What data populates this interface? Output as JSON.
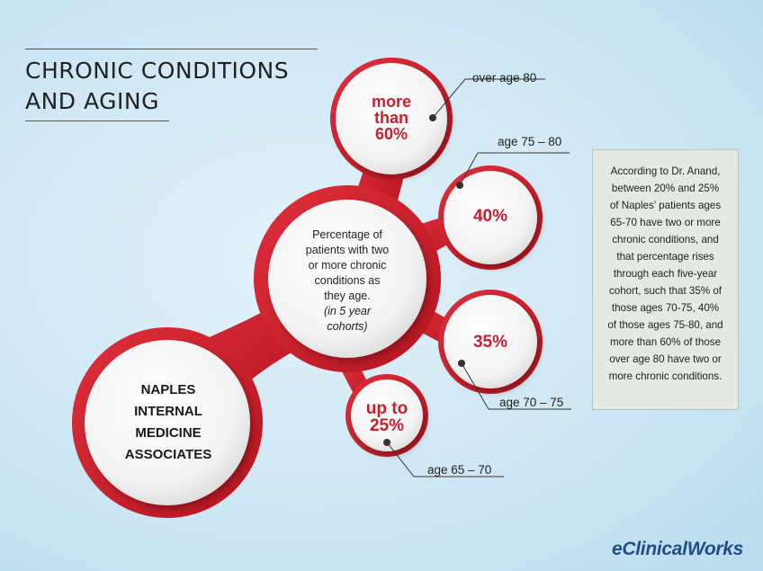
{
  "title": {
    "line1": "CHRONIC CONDITIONS",
    "line2": "AND AGING"
  },
  "hub": {
    "line1": "Percentage of",
    "line2": "patients with two",
    "line3": "or more chronic",
    "line4": "conditions as",
    "line5": "they age.",
    "note_line1": "(in 5 year",
    "note_line2": "cohorts)"
  },
  "organization": {
    "line1": "NAPLES",
    "line2": "INTERNAL",
    "line3": "MEDICINE",
    "line4": "ASSOCIATES"
  },
  "cohorts": [
    {
      "age": "over age 80",
      "value_line1": "more",
      "value_line2": "than",
      "value_line3": "60%"
    },
    {
      "age": "age 75 – 80",
      "value": "40%"
    },
    {
      "age": "age 70 – 75",
      "value": "35%"
    },
    {
      "age": "age 65 – 70",
      "value_line1": "up to",
      "value_line2": "25%"
    }
  ],
  "sidebar_note": {
    "l1": "According to Dr. Anand,",
    "l2": "between 20% and 25%",
    "l3": "of Naples’ patients ages",
    "l4": "65-70 have two or more",
    "l5": "chronic conditions, and",
    "l6": "that percentage rises",
    "l7": "through each five-year",
    "l8": "cohort, such that 35% of",
    "l9": "those ages 70-75, 40%",
    "l10": "of those ages 75-80, and",
    "l11": "more than 60% of those",
    "l12": "over age 80 have two or",
    "l13": "more chronic conditions."
  },
  "brand": "eClinicalWorks",
  "colors": {
    "accent_red": "#c8202e",
    "background": "#cde6f3",
    "note_bg": "#e4e9e3",
    "brand_blue": "#1f4f86"
  }
}
